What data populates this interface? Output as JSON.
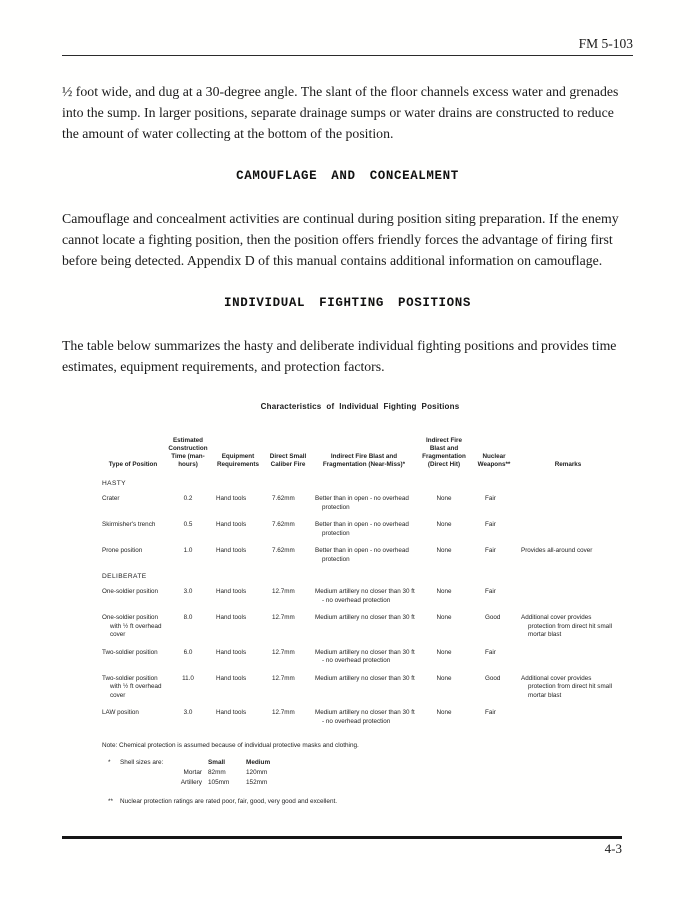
{
  "header": {
    "doc_ref": "FM 5-103"
  },
  "paragraphs": {
    "p1": "½ foot wide, and dug at a 30-degree angle. The slant of the floor channels excess water and grenades into the sump. In larger positions, separate drainage sumps or water drains are constructed to reduce the amount of water collecting at the bottom of the position.",
    "heading1": "CAMOUFLAGE AND CONCEALMENT",
    "p2": "Camouflage and concealment activities are continual during position siting preparation. If the enemy cannot locate a fighting position, then the position offers friendly forces the advantage of firing first before being detected. Appendix D of this manual contains additional information on camouflage.",
    "heading2": "INDIVIDUAL FIGHTING POSITIONS",
    "p3": "The table below summarizes the hasty and deliberate individual fighting positions and provides time estimates, equipment requirements, and protection factors."
  },
  "table": {
    "title": "Characteristics of Individual Fighting Positions",
    "columns": [
      "Type of Position",
      "Estimated Construction Time (man-hours)",
      "Equipment Requirements",
      "Direct Small Caliber Fire",
      "Indirect Fire Blast and Fragmentation (Near-Miss)*",
      "Indirect Fire Blast and Fragmentation (Direct Hit)",
      "Nuclear Weapons**",
      "Remarks"
    ],
    "sections": [
      {
        "label": "HASTY",
        "rows": [
          [
            "Crater",
            "0.2",
            "Hand tools",
            "7.62mm",
            "Better than in open - no overhead protection",
            "None",
            "Fair",
            ""
          ],
          [
            "Skirmisher's trench",
            "0.5",
            "Hand tools",
            "7.62mm",
            "Better than in open - no overhead protection",
            "None",
            "Fair",
            ""
          ],
          [
            "Prone position",
            "1.0",
            "Hand tools",
            "7.62mm",
            "Better than in open - no overhead protection",
            "None",
            "Fair",
            "Provides all-around cover"
          ]
        ]
      },
      {
        "label": "DELIBERATE",
        "rows": [
          [
            "One-soldier position",
            "3.0",
            "Hand tools",
            "12.7mm",
            "Medium artillery no closer than 30 ft - no overhead protection",
            "None",
            "Fair",
            ""
          ],
          [
            "One-soldier position with ½ ft overhead cover",
            "8.0",
            "Hand tools",
            "12.7mm",
            "Medium artillery no closer than 30 ft",
            "None",
            "Good",
            "Additional cover provides protection from direct hit small mortar blast"
          ],
          [
            "Two-soldier position",
            "6.0",
            "Hand tools",
            "12.7mm",
            "Medium artillery no closer than 30 ft - no overhead protection",
            "None",
            "Fair",
            ""
          ],
          [
            "Two-soldier position with ½ ft overhead cover",
            "11.0",
            "Hand tools",
            "12.7mm",
            "Medium artillery no closer than 30 ft",
            "None",
            "Good",
            "Additional cover provides protection from direct hit small mortar blast"
          ],
          [
            "LAW position",
            "3.0",
            "Hand tools",
            "12.7mm",
            "Medium artillery no closer than 30 ft - no overhead protection",
            "None",
            "Fair",
            ""
          ]
        ]
      }
    ],
    "notes": {
      "note": "Note: Chemical protection is assumed because of individual protective masks and clothing.",
      "footnote1_mark": "*",
      "footnote1_intro": "Shell sizes are:",
      "shell_table": {
        "headers": [
          "Small",
          "Medium"
        ],
        "rows": [
          [
            "Mortar",
            "82mm",
            "120mm"
          ],
          [
            "Artillery",
            "105mm",
            "152mm"
          ]
        ]
      },
      "footnote2_mark": "**",
      "footnote2": "Nuclear protection ratings are rated poor, fair, good, very good and excellent."
    }
  },
  "footer": {
    "page_number": "4-3"
  }
}
